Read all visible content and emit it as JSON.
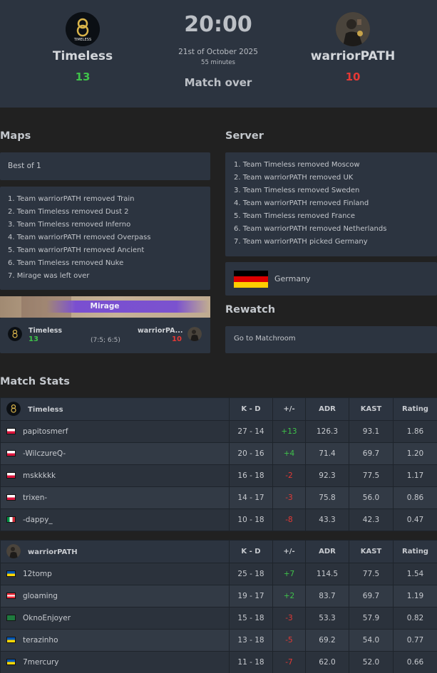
{
  "header": {
    "team1": {
      "name": "Timeless",
      "score": "13",
      "logo_text": "TIMELESS"
    },
    "team2": {
      "name": "warriorPATH",
      "score": "10"
    },
    "time": "20:00",
    "date": "21st of October 2025",
    "duration": "55 minutes",
    "status": "Match over"
  },
  "maps": {
    "title": "Maps",
    "format": "Best of 1",
    "veto": [
      "1. Team warriorPATH removed Train",
      "2. Team Timeless removed Dust 2",
      "3. Team Timeless removed Inferno",
      "4. Team warriorPATH removed Overpass",
      "5. Team warriorPATH removed Ancient",
      "6. Team Timeless removed Nuke",
      "7. Mirage was left over"
    ],
    "played_map": {
      "name": "Mirage",
      "team1": "Timeless",
      "team1_score": "13",
      "team2": "warriorPA...",
      "team2_score": "10",
      "halves": "(7:5; 6:5)"
    }
  },
  "server": {
    "title": "Server",
    "veto": [
      "1. Team Timeless removed Moscow",
      "2. Team warriorPATH removed UK",
      "3. Team Timeless removed Sweden",
      "4. Team warriorPATH removed Finland",
      "5. Team Timeless removed France",
      "6. Team warriorPATH removed Netherlands",
      "7. Team warriorPATH picked Germany"
    ],
    "location": "Germany"
  },
  "rewatch": {
    "title": "Rewatch",
    "link": "Go to Matchroom"
  },
  "stats": {
    "title": "Match Stats",
    "columns": [
      "K - D",
      "+/-",
      "ADR",
      "KAST",
      "Rating"
    ],
    "teams": [
      {
        "name": "Timeless",
        "players": [
          {
            "flag": "pl",
            "name": "papitosmerf",
            "kd": "27 - 14",
            "pm": "+13",
            "adr": "126.3",
            "kast": "93.1",
            "rating": "1.86"
          },
          {
            "flag": "pl",
            "name": "-WilczureQ-",
            "kd": "20 - 16",
            "pm": "+4",
            "adr": "71.4",
            "kast": "69.7",
            "rating": "1.20"
          },
          {
            "flag": "pl",
            "name": "mskkkkk",
            "kd": "16 - 18",
            "pm": "-2",
            "adr": "92.3",
            "kast": "77.5",
            "rating": "1.17"
          },
          {
            "flag": "pl",
            "name": "trixen-",
            "kd": "14 - 17",
            "pm": "-3",
            "adr": "75.8",
            "kast": "56.0",
            "rating": "0.86"
          },
          {
            "flag": "it",
            "name": "-dappy_",
            "kd": "10 - 18",
            "pm": "-8",
            "adr": "43.3",
            "kast": "42.3",
            "rating": "0.47"
          }
        ]
      },
      {
        "name": "warriorPATH",
        "players": [
          {
            "flag": "ua",
            "name": "12tomp",
            "kd": "25 - 18",
            "pm": "+7",
            "adr": "114.5",
            "kast": "77.5",
            "rating": "1.54"
          },
          {
            "flag": "at",
            "name": "gloaming",
            "kd": "19 - 17",
            "pm": "+2",
            "adr": "83.7",
            "kast": "69.7",
            "rating": "1.19"
          },
          {
            "flag": "eu",
            "name": "OknoEnjoyer",
            "kd": "15 - 18",
            "pm": "-3",
            "adr": "53.3",
            "kast": "57.9",
            "rating": "0.82"
          },
          {
            "flag": "ua",
            "name": "terazinho",
            "kd": "13 - 18",
            "pm": "-5",
            "adr": "69.2",
            "kast": "54.0",
            "rating": "0.77"
          },
          {
            "flag": "ua",
            "name": "7mercury",
            "kd": "11 - 18",
            "pm": "-7",
            "adr": "62.0",
            "kast": "52.0",
            "rating": "0.66"
          }
        ]
      }
    ]
  }
}
